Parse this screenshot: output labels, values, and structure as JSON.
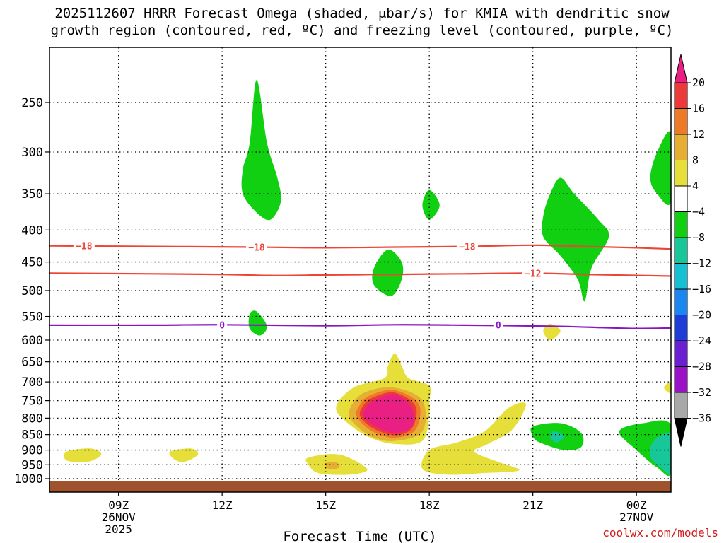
{
  "title": {
    "line1": "2025112607 HRRR Forecast Omega (shaded, μbar/s) for KMIA with dendritic snow",
    "line2": "growth region (contoured, red, ºC) and freezing level (contoured, purple, ºC)"
  },
  "credit": "coolwx.com/models",
  "chart_data": {
    "type": "time-pressure cross-section",
    "title": "2025112607 HRRR Forecast Omega (shaded, μbar/s) for KMIA with dendritic snow growth region (contoured, red, ºC) and freezing level (contoured, purple, ºC)",
    "xlabel": "Forecast Time (UTC)",
    "ylabel": "",
    "x_ticks": [
      {
        "label": "09Z",
        "sub1": "26NOV",
        "sub2": "2025",
        "hours_from_init": 2
      },
      {
        "label": "12Z",
        "sub1": "",
        "sub2": "",
        "hours_from_init": 5
      },
      {
        "label": "15Z",
        "sub1": "",
        "sub2": "",
        "hours_from_init": 8
      },
      {
        "label": "18Z",
        "sub1": "",
        "sub2": "",
        "hours_from_init": 11
      },
      {
        "label": "21Z",
        "sub1": "",
        "sub2": "",
        "hours_from_init": 14
      },
      {
        "label": "00Z",
        "sub1": "27NOV",
        "sub2": "",
        "hours_from_init": 17
      }
    ],
    "x_range_hours": [
      0,
      18
    ],
    "y_ticks_hpa": [
      250,
      300,
      350,
      400,
      450,
      500,
      550,
      600,
      650,
      700,
      750,
      800,
      850,
      900,
      950,
      1000
    ],
    "y_range_hpa": [
      200,
      1020
    ],
    "colorbar": {
      "labels": [
        "20",
        "16",
        "12",
        "8",
        "4",
        "−4",
        "−8",
        "−12",
        "−16",
        "−20",
        "−24",
        "−28",
        "−32",
        "−36"
      ],
      "bands": [
        {
          "range": [
            16,
            20
          ],
          "color": "#ec3a3a"
        },
        {
          "range": [
            12,
            16
          ],
          "color": "#ee7a28"
        },
        {
          "range": [
            8,
            12
          ],
          "color": "#e7ae34"
        },
        {
          "range": [
            4,
            8
          ],
          "color": "#e6df3a"
        },
        {
          "range": [
            -4,
            4
          ],
          "color": "#ffffff"
        },
        {
          "range": [
            -8,
            -4
          ],
          "color": "#11d011"
        },
        {
          "range": [
            -12,
            -8
          ],
          "color": "#17c79a"
        },
        {
          "range": [
            -16,
            -12
          ],
          "color": "#14c0d2"
        },
        {
          "range": [
            -20,
            -16
          ],
          "color": "#1a86f0"
        },
        {
          "range": [
            -24,
            -20
          ],
          "color": "#1f3cd9"
        },
        {
          "range": [
            -28,
            -24
          ],
          "color": "#6a1fd0"
        },
        {
          "range": [
            -32,
            -28
          ],
          "color": "#9a12c8"
        },
        {
          "range": [
            -36,
            -32
          ],
          "color": "#a8a8a8"
        }
      ],
      "top_arrow_color": "#ea1f84",
      "bottom_arrow_color": "#000000"
    },
    "contours": [
      {
        "name": "dendritic-top",
        "label": "−18",
        "color": "#ee4436",
        "points": [
          [
            0,
            424
          ],
          [
            3,
            425
          ],
          [
            6,
            426
          ],
          [
            8,
            427
          ],
          [
            10,
            426
          ],
          [
            12,
            425
          ],
          [
            14,
            423
          ],
          [
            15.5,
            425
          ],
          [
            17,
            427
          ],
          [
            18,
            429
          ]
        ]
      },
      {
        "name": "dendritic-bottom",
        "label": "−12",
        "color": "#ee4436",
        "points": [
          [
            0,
            469
          ],
          [
            3,
            470
          ],
          [
            5,
            471
          ],
          [
            6.5,
            473
          ],
          [
            8,
            472
          ],
          [
            10,
            471
          ],
          [
            12,
            470
          ],
          [
            14,
            469
          ],
          [
            15.5,
            471
          ],
          [
            18,
            474
          ]
        ]
      },
      {
        "name": "freezing-level",
        "label": "0",
        "color": "#8a16c2",
        "points": [
          [
            0,
            568
          ],
          [
            3,
            568
          ],
          [
            5,
            567
          ],
          [
            8,
            569
          ],
          [
            10,
            567
          ],
          [
            12,
            568
          ],
          [
            14.5,
            570
          ],
          [
            16,
            573
          ],
          [
            17,
            575
          ],
          [
            18,
            574
          ]
        ]
      }
    ],
    "contour_labels": [
      {
        "text": "−18",
        "x_hours": 1.0,
        "p_hpa": 424,
        "color": "#ee4436"
      },
      {
        "text": "−18",
        "x_hours": 6.0,
        "p_hpa": 426,
        "color": "#ee4436"
      },
      {
        "text": "−18",
        "x_hours": 12.1,
        "p_hpa": 425,
        "color": "#ee4436"
      },
      {
        "text": "−12",
        "x_hours": 14.0,
        "p_hpa": 469,
        "color": "#ee4436"
      },
      {
        "text": "0",
        "x_hours": 5.0,
        "p_hpa": 567,
        "color": "#8a16c2"
      },
      {
        "text": "0",
        "x_hours": 13.0,
        "p_hpa": 567,
        "color": "#8a16c2"
      }
    ],
    "omega_regions": [
      {
        "name": "ascent-250-380-13z",
        "value": -6,
        "color": "#11d011",
        "points": [
          [
            6.0,
            230
          ],
          [
            6.3,
            290
          ],
          [
            6.6,
            330
          ],
          [
            6.7,
            360
          ],
          [
            6.4,
            385
          ],
          [
            6.0,
            375
          ],
          [
            5.6,
            350
          ],
          [
            5.6,
            320
          ],
          [
            5.8,
            290
          ]
        ]
      },
      {
        "name": "ascent-350-400-18z",
        "value": -6,
        "color": "#11d011",
        "points": [
          [
            11.0,
            345
          ],
          [
            11.3,
            365
          ],
          [
            11.0,
            385
          ],
          [
            10.8,
            365
          ]
        ]
      },
      {
        "name": "ascent-430-510-17z",
        "value": -6,
        "color": "#11d011",
        "points": [
          [
            9.8,
            430
          ],
          [
            10.2,
            450
          ],
          [
            10.2,
            480
          ],
          [
            9.9,
            510
          ],
          [
            9.4,
            490
          ],
          [
            9.4,
            460
          ]
        ]
      },
      {
        "name": "ascent-540-590-13z",
        "value": -6,
        "color": "#11d011",
        "points": [
          [
            6.0,
            540
          ],
          [
            6.3,
            570
          ],
          [
            6.1,
            590
          ],
          [
            5.8,
            575
          ],
          [
            5.8,
            545
          ]
        ]
      },
      {
        "name": "ascent-330-520-22z",
        "value": -6,
        "color": "#11d011",
        "points": [
          [
            14.8,
            330
          ],
          [
            15.2,
            350
          ],
          [
            15.9,
            385
          ],
          [
            16.2,
            410
          ],
          [
            15.7,
            460
          ],
          [
            15.5,
            520
          ],
          [
            15.3,
            480
          ],
          [
            14.8,
            440
          ],
          [
            14.3,
            410
          ],
          [
            14.3,
            380
          ],
          [
            14.5,
            350
          ]
        ]
      },
      {
        "name": "ascent-280-360-00z",
        "value": -6,
        "color": "#11d011",
        "points": [
          [
            18.0,
            280
          ],
          [
            17.6,
            300
          ],
          [
            17.4,
            330
          ],
          [
            17.6,
            350
          ],
          [
            18.0,
            360
          ]
        ]
      },
      {
        "name": "ascent-850-00z",
        "value": -6,
        "color": "#11d011",
        "points": [
          [
            18.0,
            820
          ],
          [
            17.2,
            815
          ],
          [
            16.5,
            840
          ],
          [
            17.0,
            900
          ],
          [
            17.6,
            960
          ],
          [
            18.0,
            980
          ]
        ]
      },
      {
        "name": "ascent-850-22z",
        "value": -6,
        "color": "#11d011",
        "points": [
          [
            14.0,
            825
          ],
          [
            14.8,
            815
          ],
          [
            15.4,
            845
          ],
          [
            15.4,
            890
          ],
          [
            14.9,
            900
          ],
          [
            14.2,
            875
          ],
          [
            14.0,
            855
          ]
        ]
      },
      {
        "name": "ascent-core-850-22z",
        "value": -9,
        "color": "#17c79a",
        "points": [
          [
            14.6,
            840
          ],
          [
            14.9,
            855
          ],
          [
            14.7,
            875
          ],
          [
            14.5,
            860
          ]
        ]
      },
      {
        "name": "ascent-core-900-00z",
        "value": -9,
        "color": "#17c79a",
        "points": [
          [
            18.0,
            850
          ],
          [
            17.5,
            870
          ],
          [
            17.4,
            920
          ],
          [
            17.7,
            960
          ],
          [
            18.0,
            975
          ]
        ]
      },
      {
        "name": "descent-925-08z",
        "value": 5,
        "color": "#e6df3a",
        "points": [
          [
            0.5,
            905
          ],
          [
            1.2,
            895
          ],
          [
            1.5,
            915
          ],
          [
            1.1,
            940
          ],
          [
            0.5,
            935
          ]
        ]
      },
      {
        "name": "descent-900-11z",
        "value": 5,
        "color": "#e6df3a",
        "points": [
          [
            3.5,
            905
          ],
          [
            4.1,
            895
          ],
          [
            4.3,
            915
          ],
          [
            3.9,
            940
          ],
          [
            3.6,
            930
          ]
        ]
      },
      {
        "name": "descent-950-15z",
        "value": 5,
        "color": "#e6df3a",
        "points": [
          [
            7.5,
            925
          ],
          [
            8.4,
            915
          ],
          [
            9.2,
            965
          ],
          [
            8.7,
            985
          ],
          [
            7.8,
            980
          ],
          [
            7.5,
            950
          ]
        ]
      },
      {
        "name": "descent-955-18z",
        "value": 5,
        "color": "#e6df3a",
        "points": [
          [
            11.0,
            900
          ],
          [
            11.8,
            875
          ],
          [
            12.6,
            840
          ],
          [
            13.3,
            770
          ],
          [
            13.8,
            760
          ],
          [
            13.4,
            835
          ],
          [
            12.7,
            880
          ],
          [
            12.3,
            905
          ],
          [
            13.0,
            940
          ],
          [
            13.6,
            970
          ],
          [
            12.5,
            980
          ],
          [
            11.5,
            985
          ],
          [
            10.8,
            965
          ]
        ]
      },
      {
        "name": "descent-720-00z",
        "value": 5,
        "color": "#e6df3a",
        "points": [
          [
            18.0,
            700
          ],
          [
            17.8,
            715
          ],
          [
            18.0,
            730
          ]
        ]
      },
      {
        "name": "descent-570-22z",
        "value": 5,
        "color": "#e6df3a",
        "points": [
          [
            14.5,
            565
          ],
          [
            14.8,
            580
          ],
          [
            14.5,
            600
          ],
          [
            14.3,
            580
          ]
        ]
      },
      {
        "name": "descent-780-17z",
        "value": 6,
        "color": "#e6df3a",
        "points": [
          [
            10.0,
            630
          ],
          [
            10.2,
            660
          ],
          [
            10.4,
            690
          ],
          [
            11.0,
            710
          ],
          [
            11.0,
            750
          ],
          [
            11.0,
            790
          ],
          [
            10.8,
            870
          ],
          [
            10.0,
            880
          ],
          [
            9.3,
            860
          ],
          [
            8.7,
            820
          ],
          [
            8.3,
            770
          ],
          [
            8.8,
            715
          ],
          [
            9.7,
            690
          ],
          [
            9.8,
            660
          ]
        ]
      },
      {
        "name": "descent-950-15z-core",
        "value": 9,
        "color": "#e7ae34",
        "points": [
          [
            8.0,
            945
          ],
          [
            8.3,
            940
          ],
          [
            8.4,
            960
          ],
          [
            8.1,
            965
          ]
        ]
      },
      {
        "name": "descent-800-17z-ring1",
        "value": 10,
        "color": "#e7ae34",
        "points": [
          [
            9.2,
            725
          ],
          [
            10.0,
            715
          ],
          [
            10.8,
            750
          ],
          [
            10.8,
            840
          ],
          [
            10.0,
            870
          ],
          [
            9.3,
            855
          ],
          [
            8.7,
            800
          ],
          [
            8.8,
            755
          ]
        ]
      },
      {
        "name": "descent-800-17z-ring2",
        "value": 14,
        "color": "#ee7a28",
        "points": [
          [
            9.3,
            735
          ],
          [
            10.0,
            722
          ],
          [
            10.7,
            760
          ],
          [
            10.6,
            835
          ],
          [
            10.0,
            860
          ],
          [
            9.35,
            840
          ],
          [
            8.9,
            795
          ],
          [
            9.0,
            760
          ]
        ]
      },
      {
        "name": "descent-800-17z-ring3",
        "value": 18,
        "color": "#ec3a3a",
        "points": [
          [
            9.4,
            740
          ],
          [
            10.0,
            728
          ],
          [
            10.6,
            765
          ],
          [
            10.5,
            830
          ],
          [
            10.0,
            852
          ],
          [
            9.4,
            832
          ],
          [
            9.0,
            795
          ],
          [
            9.1,
            762
          ]
        ]
      },
      {
        "name": "descent-800-17z-peak",
        "value": 22,
        "color": "#ea1f84",
        "points": [
          [
            9.5,
            745
          ],
          [
            10.0,
            733
          ],
          [
            10.5,
            770
          ],
          [
            10.5,
            825
          ],
          [
            10.0,
            845
          ],
          [
            9.5,
            828
          ],
          [
            9.1,
            795
          ],
          [
            9.2,
            765
          ]
        ]
      }
    ],
    "surface": {
      "label": "surface terrain",
      "p_top_hpa": 1010,
      "color": "#a0522d"
    }
  }
}
